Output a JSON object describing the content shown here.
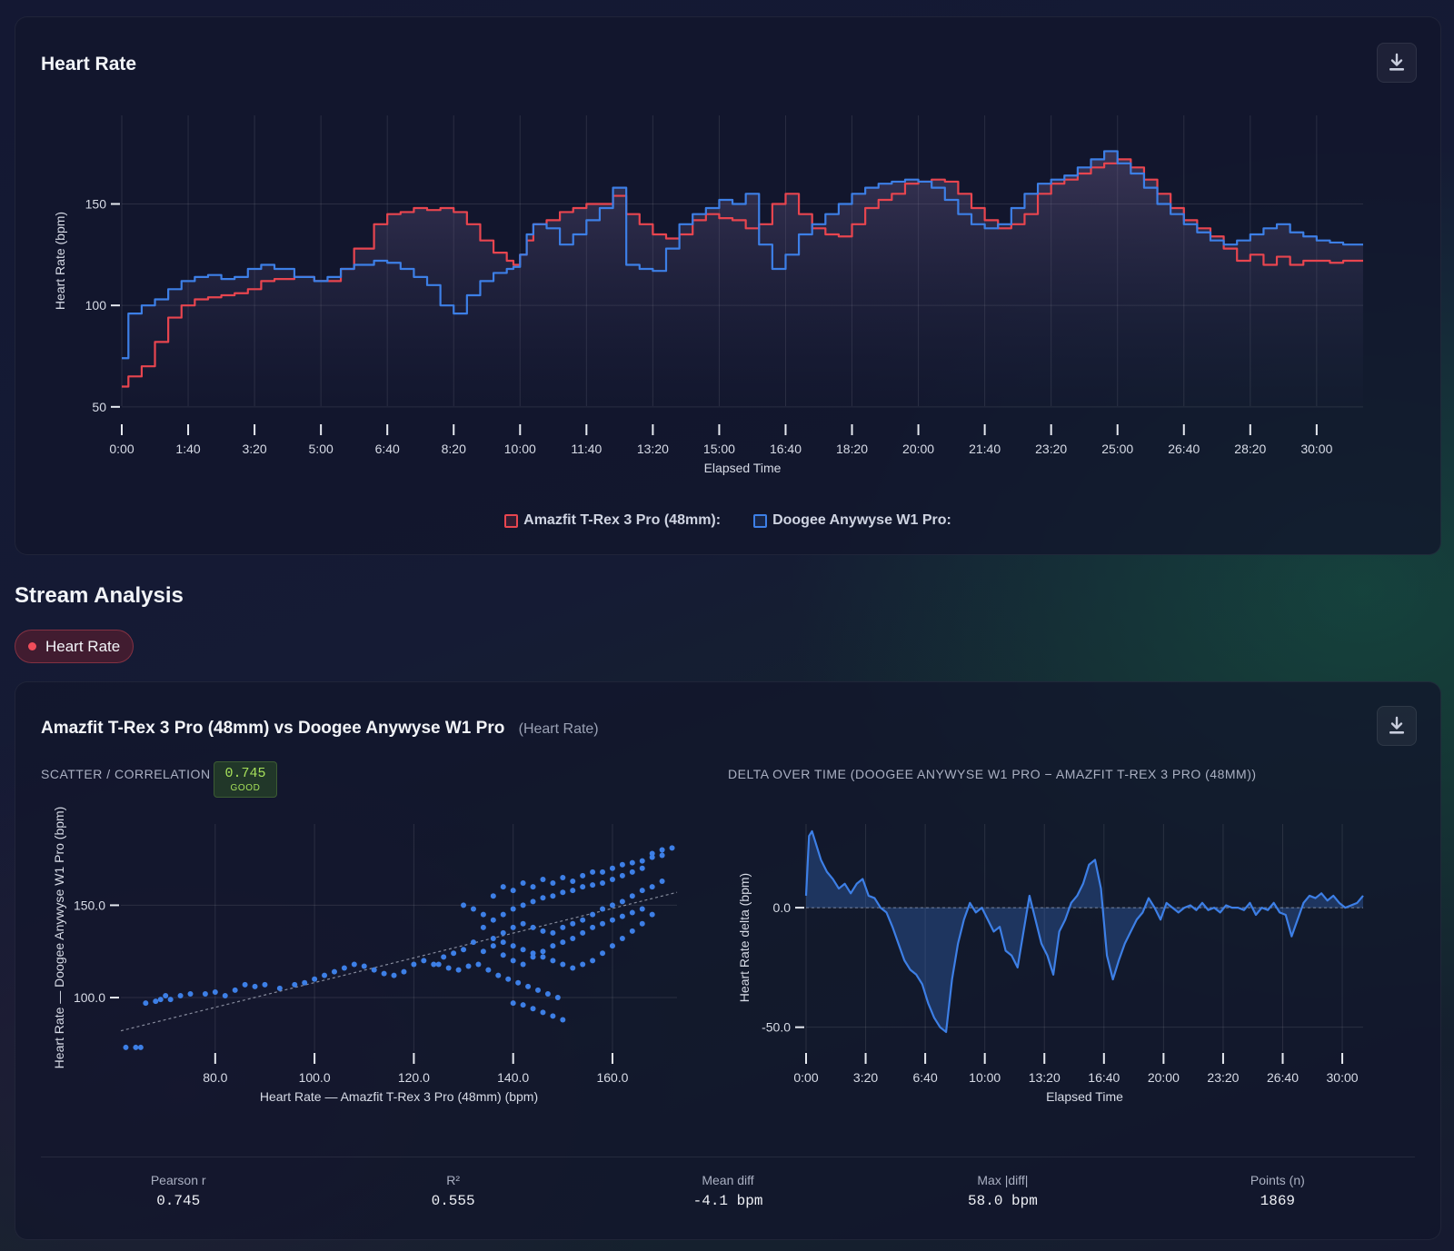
{
  "heart_rate_card": {
    "title": "Heart Rate",
    "download_label": "download-icon"
  },
  "section": {
    "title": "Stream Analysis",
    "chip_label": "Heart Rate"
  },
  "comparison": {
    "title": "Amazfit T-Rex 3 Pro (48mm) vs Doogee Anywyse W1 Pro",
    "subtitle": "(Heart Rate)",
    "scatter_label": "SCATTER / CORRELATION",
    "delta_label": "DELTA OVER TIME (DOOGEE ANYWYSE W1 PRO − AMAZFIT T-REX 3 PRO (48MM))",
    "correlation_badge": {
      "value": "0.745",
      "grade": "GOOD"
    },
    "stats": [
      {
        "label": "Pearson r",
        "value": "0.745"
      },
      {
        "label": "R²",
        "value": "0.555"
      },
      {
        "label": "Mean diff",
        "value": "-4.1 bpm"
      },
      {
        "label": "Max |diff|",
        "value": "58.0 bpm"
      },
      {
        "label": "Points (n)",
        "value": "1869"
      }
    ]
  },
  "colors": {
    "amazfit": "#e8454f",
    "doogee": "#3d7fe6",
    "badge_green": "#a6e05a"
  },
  "chart_data": [
    {
      "type": "line",
      "ylabel": "Heart Rate (bpm)",
      "xlabel": "Elapsed Time",
      "x_unit": "seconds",
      "xlim": [
        0,
        1870
      ],
      "ylim": [
        45,
        195
      ],
      "x_ticks": [
        0,
        100,
        200,
        300,
        400,
        500,
        600,
        700,
        800,
        900,
        1000,
        1100,
        1200,
        1300,
        1400,
        1500,
        1600,
        1700,
        1800
      ],
      "x_tick_labels": [
        "0:00",
        "1:40",
        "3:20",
        "5:00",
        "6:40",
        "8:20",
        "10:00",
        "11:40",
        "13:20",
        "15:00",
        "16:40",
        "18:20",
        "20:00",
        "21:40",
        "23:20",
        "25:00",
        "26:40",
        "28:20",
        "30:00"
      ],
      "y_ticks": [
        50,
        100,
        150
      ],
      "y_tick_labels": [
        "50",
        "100",
        "150"
      ],
      "grid": true,
      "legend_position": "bottom-center",
      "x": [
        0,
        10,
        30,
        50,
        70,
        90,
        110,
        130,
        150,
        170,
        190,
        210,
        230,
        260,
        290,
        310,
        330,
        350,
        380,
        400,
        420,
        440,
        460,
        480,
        500,
        520,
        540,
        560,
        580,
        590,
        600,
        610,
        620,
        640,
        660,
        680,
        700,
        720,
        740,
        760,
        780,
        800,
        820,
        840,
        860,
        880,
        900,
        920,
        940,
        960,
        980,
        1000,
        1020,
        1040,
        1060,
        1080,
        1100,
        1120,
        1140,
        1160,
        1180,
        1200,
        1220,
        1240,
        1260,
        1280,
        1300,
        1320,
        1340,
        1360,
        1380,
        1400,
        1420,
        1440,
        1460,
        1480,
        1500,
        1520,
        1540,
        1560,
        1580,
        1600,
        1620,
        1640,
        1660,
        1680,
        1700,
        1720,
        1740,
        1760,
        1780,
        1800,
        1820,
        1840,
        1870
      ],
      "series": [
        {
          "name": "Amazfit T-Rex 3 Pro (48mm):",
          "values": [
            60,
            65,
            70,
            82,
            94,
            100,
            103,
            104,
            105,
            106,
            108,
            112,
            113,
            114,
            112,
            112,
            118,
            128,
            140,
            145,
            146,
            148,
            147,
            148,
            146,
            140,
            132,
            126,
            122,
            120,
            125,
            132,
            140,
            142,
            146,
            148,
            150,
            150,
            154,
            145,
            140,
            135,
            133,
            135,
            142,
            145,
            143,
            142,
            138,
            140,
            150,
            155,
            145,
            138,
            135,
            134,
            140,
            148,
            152,
            155,
            160,
            161,
            162,
            161,
            155,
            148,
            142,
            138,
            140,
            145,
            155,
            160,
            162,
            165,
            168,
            170,
            172,
            168,
            162,
            155,
            148,
            142,
            138,
            134,
            128,
            122,
            125,
            120,
            124,
            120,
            122,
            122,
            121,
            122,
            122
          ]
        },
        {
          "name": "Doogee Anywyse W1 Pro:",
          "values": [
            74,
            96,
            100,
            103,
            108,
            112,
            114,
            115,
            113,
            114,
            118,
            120,
            118,
            114,
            112,
            114,
            118,
            120,
            122,
            121,
            118,
            114,
            110,
            100,
            96,
            105,
            112,
            116,
            118,
            119,
            125,
            135,
            140,
            138,
            130,
            135,
            142,
            148,
            158,
            120,
            118,
            117,
            128,
            140,
            145,
            148,
            152,
            150,
            155,
            130,
            118,
            125,
            135,
            140,
            145,
            150,
            155,
            158,
            160,
            161,
            162,
            161,
            158,
            152,
            145,
            140,
            138,
            140,
            148,
            155,
            160,
            162,
            164,
            168,
            172,
            176,
            170,
            165,
            158,
            150,
            145,
            140,
            136,
            132,
            130,
            132,
            135,
            138,
            140,
            136,
            134,
            132,
            131,
            130,
            130
          ]
        }
      ]
    },
    {
      "type": "scatter",
      "xlabel": "Heart Rate — Amazfit T-Rex 3 Pro (48mm) (bpm)",
      "ylabel": "Heart Rate — Doogee Anywyse W1 Pro (bpm)",
      "xlim": [
        61,
        173
      ],
      "ylim": [
        71,
        194
      ],
      "x_ticks": [
        80,
        100,
        120,
        140,
        160
      ],
      "x_tick_labels": [
        "80.0",
        "100.0",
        "120.0",
        "140.0",
        "160.0"
      ],
      "y_ticks": [
        100,
        150
      ],
      "y_tick_labels": [
        "100.0",
        "150.0"
      ],
      "grid": true,
      "trendline": {
        "x": [
          61,
          173
        ],
        "y": [
          82,
          157
        ]
      },
      "points": [
        [
          62,
          73
        ],
        [
          64,
          73
        ],
        [
          65,
          73
        ],
        [
          66,
          97
        ],
        [
          68,
          98
        ],
        [
          69,
          99
        ],
        [
          70,
          101
        ],
        [
          71,
          99
        ],
        [
          73,
          101
        ],
        [
          75,
          102
        ],
        [
          78,
          102
        ],
        [
          80,
          103
        ],
        [
          82,
          101
        ],
        [
          84,
          104
        ],
        [
          86,
          107
        ],
        [
          88,
          106
        ],
        [
          90,
          107
        ],
        [
          93,
          105
        ],
        [
          96,
          107
        ],
        [
          98,
          108
        ],
        [
          100,
          110
        ],
        [
          102,
          112
        ],
        [
          104,
          114
        ],
        [
          106,
          116
        ],
        [
          108,
          118
        ],
        [
          110,
          117
        ],
        [
          112,
          115
        ],
        [
          114,
          113
        ],
        [
          116,
          112
        ],
        [
          118,
          114
        ],
        [
          120,
          118
        ],
        [
          122,
          120
        ],
        [
          124,
          118
        ],
        [
          126,
          122
        ],
        [
          128,
          124
        ],
        [
          130,
          126
        ],
        [
          132,
          130
        ],
        [
          134,
          138
        ],
        [
          136,
          142
        ],
        [
          138,
          145
        ],
        [
          140,
          148
        ],
        [
          142,
          150
        ],
        [
          144,
          152
        ],
        [
          146,
          154
        ],
        [
          148,
          155
        ],
        [
          150,
          157
        ],
        [
          152,
          158
        ],
        [
          154,
          160
        ],
        [
          156,
          161
        ],
        [
          158,
          162
        ],
        [
          160,
          164
        ],
        [
          162,
          166
        ],
        [
          164,
          168
        ],
        [
          166,
          170
        ],
        [
          168,
          178
        ],
        [
          170,
          180
        ],
        [
          172,
          181
        ],
        [
          130,
          150
        ],
        [
          132,
          148
        ],
        [
          134,
          145
        ],
        [
          136,
          155
        ],
        [
          138,
          160
        ],
        [
          140,
          158
        ],
        [
          142,
          162
        ],
        [
          144,
          160
        ],
        [
          146,
          164
        ],
        [
          148,
          162
        ],
        [
          150,
          165
        ],
        [
          152,
          163
        ],
        [
          154,
          166
        ],
        [
          156,
          168
        ],
        [
          158,
          168
        ],
        [
          160,
          170
        ],
        [
          162,
          172
        ],
        [
          164,
          173
        ],
        [
          166,
          174
        ],
        [
          168,
          176
        ],
        [
          170,
          177
        ],
        [
          125,
          118
        ],
        [
          127,
          116
        ],
        [
          129,
          115
        ],
        [
          131,
          117
        ],
        [
          133,
          118
        ],
        [
          135,
          115
        ],
        [
          137,
          112
        ],
        [
          139,
          110
        ],
        [
          141,
          108
        ],
        [
          143,
          106
        ],
        [
          145,
          104
        ],
        [
          147,
          102
        ],
        [
          149,
          100
        ],
        [
          134,
          125
        ],
        [
          136,
          128
        ],
        [
          138,
          123
        ],
        [
          140,
          120
        ],
        [
          142,
          118
        ],
        [
          144,
          122
        ],
        [
          146,
          125
        ],
        [
          148,
          128
        ],
        [
          150,
          130
        ],
        [
          152,
          132
        ],
        [
          154,
          135
        ],
        [
          156,
          138
        ],
        [
          158,
          140
        ],
        [
          160,
          142
        ],
        [
          162,
          144
        ],
        [
          164,
          146
        ],
        [
          166,
          148
        ],
        [
          140,
          97
        ],
        [
          142,
          96
        ],
        [
          144,
          94
        ],
        [
          146,
          92
        ],
        [
          148,
          90
        ],
        [
          150,
          88
        ],
        [
          138,
          135
        ],
        [
          140,
          138
        ],
        [
          142,
          140
        ],
        [
          144,
          138
        ],
        [
          146,
          136
        ],
        [
          148,
          135
        ],
        [
          150,
          138
        ],
        [
          152,
          140
        ],
        [
          154,
          142
        ],
        [
          156,
          145
        ],
        [
          158,
          148
        ],
        [
          160,
          150
        ],
        [
          162,
          152
        ],
        [
          164,
          155
        ],
        [
          166,
          158
        ],
        [
          168,
          160
        ],
        [
          170,
          163
        ],
        [
          136,
          132
        ],
        [
          138,
          130
        ],
        [
          140,
          128
        ],
        [
          142,
          126
        ],
        [
          144,
          124
        ],
        [
          146,
          122
        ],
        [
          148,
          120
        ],
        [
          150,
          118
        ],
        [
          152,
          116
        ],
        [
          154,
          118
        ],
        [
          156,
          120
        ],
        [
          158,
          124
        ],
        [
          160,
          128
        ],
        [
          162,
          132
        ],
        [
          164,
          136
        ],
        [
          166,
          140
        ],
        [
          168,
          145
        ]
      ]
    },
    {
      "type": "area",
      "xlabel": "Elapsed Time",
      "ylabel": "Heart Rate delta (bpm)",
      "x_unit": "seconds",
      "xlim": [
        0,
        1870
      ],
      "ylim": [
        -60,
        35
      ],
      "x_ticks": [
        0,
        200,
        400,
        600,
        800,
        1000,
        1200,
        1400,
        1600,
        1800
      ],
      "x_tick_labels": [
        "0:00",
        "3:20",
        "6:40",
        "10:00",
        "13:20",
        "16:40",
        "20:00",
        "23:20",
        "26:40",
        "30:00"
      ],
      "y_ticks": [
        -50,
        0
      ],
      "y_tick_labels": [
        "-50.0",
        "0.0"
      ],
      "grid": true,
      "x": [
        0,
        10,
        20,
        30,
        50,
        70,
        90,
        110,
        130,
        150,
        170,
        190,
        210,
        230,
        250,
        270,
        290,
        310,
        330,
        350,
        370,
        390,
        410,
        430,
        450,
        470,
        490,
        510,
        530,
        550,
        570,
        590,
        610,
        630,
        650,
        670,
        690,
        710,
        730,
        750,
        770,
        790,
        810,
        830,
        850,
        870,
        890,
        910,
        930,
        950,
        970,
        990,
        1010,
        1030,
        1050,
        1070,
        1090,
        1110,
        1130,
        1150,
        1170,
        1190,
        1210,
        1230,
        1250,
        1270,
        1290,
        1310,
        1330,
        1350,
        1370,
        1390,
        1410,
        1430,
        1450,
        1470,
        1490,
        1510,
        1530,
        1550,
        1570,
        1590,
        1610,
        1630,
        1650,
        1670,
        1690,
        1710,
        1730,
        1750,
        1770,
        1790,
        1810,
        1830,
        1850,
        1870
      ],
      "values": [
        5,
        30,
        32,
        28,
        20,
        15,
        12,
        8,
        10,
        6,
        10,
        12,
        5,
        4,
        0,
        -2,
        -8,
        -15,
        -22,
        -26,
        -28,
        -32,
        -40,
        -46,
        -50,
        -52,
        -30,
        -15,
        -5,
        2,
        -2,
        0,
        -5,
        -10,
        -8,
        -18,
        -20,
        -25,
        -10,
        5,
        -5,
        -15,
        -20,
        -28,
        -10,
        -5,
        2,
        5,
        10,
        18,
        20,
        8,
        -20,
        -30,
        -22,
        -15,
        -10,
        -5,
        -2,
        4,
        0,
        -5,
        2,
        0,
        -2,
        0,
        1,
        -1,
        2,
        -1,
        0,
        -2,
        1,
        0,
        0,
        -1,
        2,
        -3,
        0,
        -1,
        2,
        -2,
        -3,
        -12,
        -5,
        2,
        5,
        4,
        6,
        3,
        5,
        2,
        0,
        1,
        2,
        5
      ]
    }
  ]
}
